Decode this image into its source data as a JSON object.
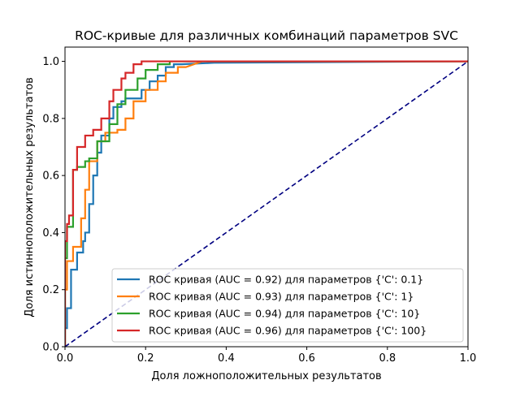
{
  "chart_data": {
    "type": "line",
    "title": "ROC-кривые для различных комбинаций параметров SVC",
    "xlabel": "Доля ложноположительных результатов",
    "ylabel": "Доля истинноположительных результатов",
    "xlim": [
      0.0,
      1.0
    ],
    "ylim": [
      0.0,
      1.05
    ],
    "xticks": [
      "0.0",
      "0.2",
      "0.4",
      "0.6",
      "0.8",
      "1.0"
    ],
    "yticks": [
      "0.0",
      "0.2",
      "0.4",
      "0.6",
      "0.8",
      "1.0"
    ],
    "grid": false,
    "legend_position": "lower-right",
    "diagonal": {
      "style": "dashed",
      "color": "#000080",
      "x": [
        0,
        1
      ],
      "y": [
        0,
        1
      ]
    },
    "series": [
      {
        "name": "ROC кривая (AUC = 0.92) для параметров {'C': 0.1}",
        "color": "#1f77b4",
        "x": [
          0,
          0.0,
          0.005,
          0.005,
          0.015,
          0.015,
          0.03,
          0.03,
          0.045,
          0.045,
          0.05,
          0.05,
          0.06,
          0.06,
          0.07,
          0.07,
          0.08,
          0.08,
          0.09,
          0.09,
          0.11,
          0.11,
          0.12,
          0.12,
          0.14,
          0.14,
          0.15,
          0.15,
          0.19,
          0.19,
          0.21,
          0.21,
          0.23,
          0.23,
          0.25,
          0.25,
          0.27,
          0.27,
          0.29,
          0.37,
          1.0
        ],
        "y": [
          0,
          0.065,
          0.065,
          0.135,
          0.135,
          0.27,
          0.27,
          0.33,
          0.33,
          0.37,
          0.37,
          0.4,
          0.4,
          0.5,
          0.5,
          0.6,
          0.6,
          0.68,
          0.68,
          0.74,
          0.74,
          0.8,
          0.8,
          0.84,
          0.84,
          0.86,
          0.86,
          0.87,
          0.87,
          0.9,
          0.9,
          0.93,
          0.93,
          0.95,
          0.95,
          0.98,
          0.98,
          0.99,
          0.99,
          0.995,
          1.0
        ]
      },
      {
        "name": "ROC кривая (AUC = 0.93) для параметров {'C': 1}",
        "color": "#ff7f0e",
        "x": [
          0,
          0.0,
          0.005,
          0.005,
          0.02,
          0.02,
          0.04,
          0.04,
          0.05,
          0.05,
          0.06,
          0.06,
          0.08,
          0.08,
          0.1,
          0.1,
          0.13,
          0.13,
          0.15,
          0.15,
          0.17,
          0.17,
          0.2,
          0.2,
          0.23,
          0.23,
          0.25,
          0.25,
          0.28,
          0.28,
          0.3,
          0.34,
          1.0
        ],
        "y": [
          0,
          0.2,
          0.2,
          0.3,
          0.3,
          0.35,
          0.35,
          0.45,
          0.45,
          0.55,
          0.55,
          0.65,
          0.65,
          0.72,
          0.72,
          0.75,
          0.75,
          0.76,
          0.76,
          0.8,
          0.8,
          0.86,
          0.86,
          0.9,
          0.9,
          0.93,
          0.93,
          0.96,
          0.96,
          0.98,
          0.98,
          1.0,
          1.0
        ]
      },
      {
        "name": "ROC кривая (AUC = 0.94) для параметров {'C': 10}",
        "color": "#2ca02c",
        "x": [
          0,
          0.0,
          0.005,
          0.005,
          0.02,
          0.02,
          0.03,
          0.03,
          0.05,
          0.05,
          0.06,
          0.06,
          0.08,
          0.08,
          0.11,
          0.11,
          0.13,
          0.13,
          0.15,
          0.15,
          0.18,
          0.18,
          0.2,
          0.2,
          0.23,
          0.23,
          0.26,
          0.26,
          0.29,
          0.29,
          1.0
        ],
        "y": [
          0,
          0.31,
          0.31,
          0.42,
          0.42,
          0.62,
          0.62,
          0.63,
          0.63,
          0.65,
          0.65,
          0.66,
          0.66,
          0.72,
          0.72,
          0.78,
          0.78,
          0.85,
          0.85,
          0.9,
          0.9,
          0.94,
          0.94,
          0.97,
          0.97,
          0.99,
          0.99,
          1.0,
          1.0,
          1.0,
          1.0
        ]
      },
      {
        "name": "ROC кривая (AUC = 0.96) для параметров {'C': 100}",
        "color": "#d62728",
        "x": [
          0,
          0.0,
          0.005,
          0.005,
          0.01,
          0.01,
          0.02,
          0.02,
          0.03,
          0.03,
          0.05,
          0.05,
          0.07,
          0.07,
          0.09,
          0.09,
          0.11,
          0.11,
          0.12,
          0.12,
          0.14,
          0.14,
          0.15,
          0.15,
          0.17,
          0.17,
          0.19,
          0.19,
          1.0
        ],
        "y": [
          0,
          0.37,
          0.37,
          0.43,
          0.43,
          0.46,
          0.46,
          0.62,
          0.62,
          0.7,
          0.7,
          0.74,
          0.74,
          0.76,
          0.76,
          0.8,
          0.8,
          0.86,
          0.86,
          0.9,
          0.9,
          0.94,
          0.94,
          0.96,
          0.96,
          0.99,
          0.99,
          1.0,
          1.0
        ]
      }
    ]
  }
}
